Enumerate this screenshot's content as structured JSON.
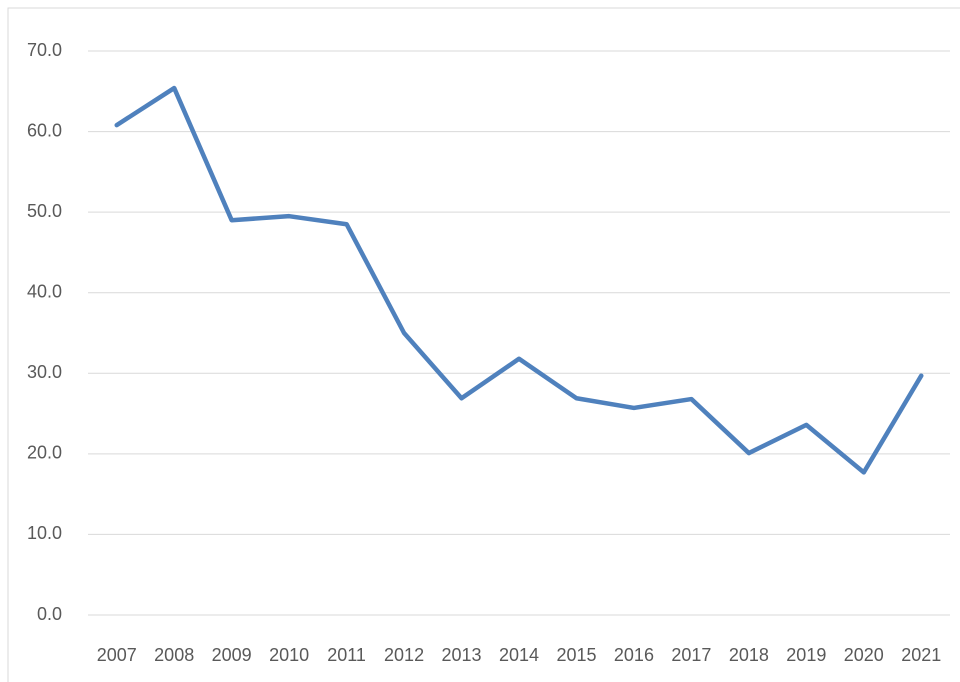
{
  "chart_data": {
    "type": "line",
    "categories": [
      "2007",
      "2008",
      "2009",
      "2010",
      "2011",
      "2012",
      "2013",
      "2014",
      "2015",
      "2016",
      "2017",
      "2018",
      "2019",
      "2020",
      "2021"
    ],
    "series": [
      {
        "color": "#4f81bd",
        "values": [
          60.8,
          65.4,
          49.0,
          49.5,
          48.5,
          35.0,
          26.9,
          31.8,
          26.9,
          25.7,
          26.8,
          20.1,
          23.6,
          17.7,
          29.7
        ]
      }
    ],
    "ylim": [
      0,
      70
    ],
    "yticks": [
      {
        "value": 0,
        "label": "0.0"
      },
      {
        "value": 10,
        "label": "10.0"
      },
      {
        "value": 20,
        "label": "20.0"
      },
      {
        "value": 30,
        "label": "30.0"
      },
      {
        "value": 40,
        "label": "40.0"
      },
      {
        "value": 50,
        "label": "50.0"
      },
      {
        "value": 60,
        "label": "60.0"
      },
      {
        "value": 70,
        "label": "70.0"
      }
    ],
    "grid": true
  }
}
